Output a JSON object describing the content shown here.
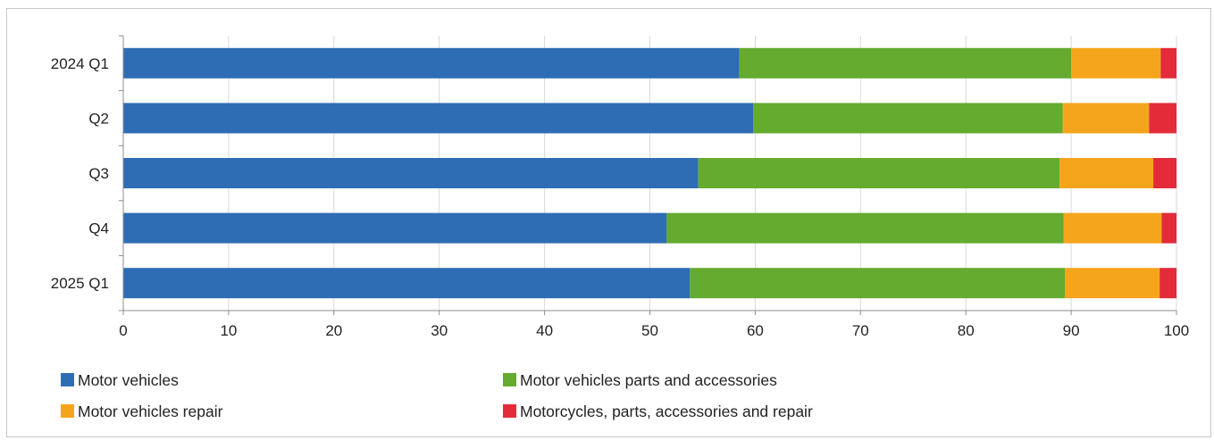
{
  "chart_data": {
    "type": "bar",
    "orientation": "horizontal",
    "stacked": true,
    "categories": [
      "2024 Q1",
      "Q2",
      "Q3",
      "Q4",
      "2025 Q1"
    ],
    "series": [
      {
        "name": "Motor vehicles",
        "color": "#2e6db4",
        "values": [
          58.5,
          59.8,
          54.6,
          51.6,
          53.8
        ]
      },
      {
        "name": "Motor vehicles parts and accessories",
        "color": "#64ab2f",
        "values": [
          31.5,
          29.4,
          34.3,
          37.7,
          35.6
        ]
      },
      {
        "name": "Motor vehicles repair",
        "color": "#f5a51c",
        "values": [
          8.5,
          8.2,
          8.9,
          9.3,
          9.0
        ]
      },
      {
        "name": "Motorcycles, parts, accessories and repair",
        "color": "#e32b3a",
        "values": [
          1.5,
          2.6,
          2.2,
          1.4,
          1.6
        ]
      }
    ],
    "xlim": [
      0,
      100
    ],
    "xticks": [
      "0",
      "10",
      "20",
      "30",
      "40",
      "50",
      "60",
      "70",
      "80",
      "90",
      "100"
    ],
    "grid": true,
    "legend_position": "bottom"
  }
}
